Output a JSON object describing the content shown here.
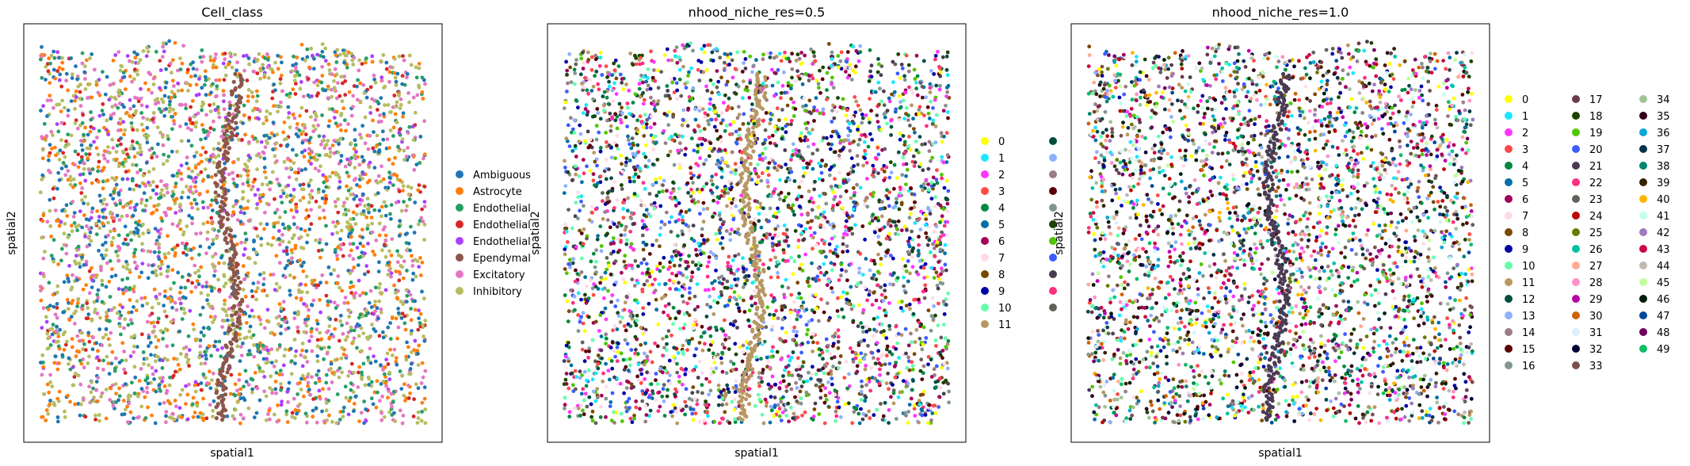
{
  "chart_data": [
    {
      "type": "scatter",
      "title": "Cell_class",
      "xlabel": "spatial1",
      "ylabel": "spatial2",
      "ticks": "none",
      "legend": {
        "placement": "right",
        "columns": 1,
        "entries": [
          {
            "label": "Ambiguous",
            "color": "#1f77b4"
          },
          {
            "label": "Astrocyte",
            "color": "#ff7f0e"
          },
          {
            "label": "Endothelial",
            "color": "#279e68"
          },
          {
            "label": "Endothelial",
            "color": "#d62728"
          },
          {
            "label": "Endothelial",
            "color": "#aa40fc"
          },
          {
            "label": "Ependymal",
            "color": "#8c564b"
          },
          {
            "label": "Excitatory",
            "color": "#e377c2"
          },
          {
            "label": "Inhibitory",
            "color": "#b5bd61"
          }
        ]
      }
    },
    {
      "type": "scatter",
      "title": "nhood_niche_res=0.5",
      "xlabel": "spatial1",
      "ylabel": "spatial2",
      "ticks": "none",
      "legend": {
        "placement": "right",
        "columns": 2,
        "entries": [
          {
            "label": "0",
            "color": "#ffff00"
          },
          {
            "label": "1",
            "color": "#1ce6ff"
          },
          {
            "label": "2",
            "color": "#ff34ff"
          },
          {
            "label": "3",
            "color": "#ff4a46"
          },
          {
            "label": "4",
            "color": "#008941"
          },
          {
            "label": "5",
            "color": "#006fa6"
          },
          {
            "label": "6",
            "color": "#a30059"
          },
          {
            "label": "7",
            "color": "#ffdbe5"
          },
          {
            "label": "8",
            "color": "#7a4900"
          },
          {
            "label": "9",
            "color": "#0000a6"
          },
          {
            "label": "10",
            "color": "#63ffac"
          },
          {
            "label": "11",
            "color": "#b79762"
          },
          {
            "label": "",
            "color": "#004d43"
          },
          {
            "label": "",
            "color": "#8fb0ff"
          },
          {
            "label": "",
            "color": "#997d87"
          },
          {
            "label": "",
            "color": "#5a0007"
          },
          {
            "label": "",
            "color": "#809693"
          },
          {
            "label": "",
            "color": "#1b4400"
          },
          {
            "label": "",
            "color": "#4fc601"
          },
          {
            "label": "",
            "color": "#3b5dff"
          },
          {
            "label": "",
            "color": "#4a3b53"
          },
          {
            "label": "",
            "color": "#ff2f80"
          },
          {
            "label": "",
            "color": "#61615a"
          }
        ]
      }
    },
    {
      "type": "scatter",
      "title": "nhood_niche_res=1.0",
      "xlabel": "spatial1",
      "ylabel": "spatial2",
      "ticks": "none",
      "legend": {
        "placement": "right",
        "columns": 3,
        "entries": [
          {
            "label": "0",
            "color": "#ffff00"
          },
          {
            "label": "1",
            "color": "#1ce6ff"
          },
          {
            "label": "2",
            "color": "#ff34ff"
          },
          {
            "label": "3",
            "color": "#ff4a46"
          },
          {
            "label": "4",
            "color": "#008941"
          },
          {
            "label": "5",
            "color": "#006fa6"
          },
          {
            "label": "6",
            "color": "#a30059"
          },
          {
            "label": "7",
            "color": "#ffdbe5"
          },
          {
            "label": "8",
            "color": "#7a4900"
          },
          {
            "label": "9",
            "color": "#0000a6"
          },
          {
            "label": "10",
            "color": "#63ffac"
          },
          {
            "label": "11",
            "color": "#b79762"
          },
          {
            "label": "12",
            "color": "#004d43"
          },
          {
            "label": "13",
            "color": "#8fb0ff"
          },
          {
            "label": "14",
            "color": "#997d87"
          },
          {
            "label": "15",
            "color": "#5a0007"
          },
          {
            "label": "16",
            "color": "#809693"
          },
          {
            "label": "17",
            "color": "#6a3a4c"
          },
          {
            "label": "18",
            "color": "#1b4400"
          },
          {
            "label": "19",
            "color": "#4fc601"
          },
          {
            "label": "20",
            "color": "#3b5dff"
          },
          {
            "label": "21",
            "color": "#4a3b53"
          },
          {
            "label": "22",
            "color": "#ff2f80"
          },
          {
            "label": "23",
            "color": "#61615a"
          },
          {
            "label": "24",
            "color": "#ba0900"
          },
          {
            "label": "25",
            "color": "#6b7900"
          },
          {
            "label": "26",
            "color": "#00c2a0"
          },
          {
            "label": "27",
            "color": "#ffaa92"
          },
          {
            "label": "28",
            "color": "#ff90c9"
          },
          {
            "label": "29",
            "color": "#b903aa"
          },
          {
            "label": "30",
            "color": "#d16100"
          },
          {
            "label": "31",
            "color": "#ddefff"
          },
          {
            "label": "32",
            "color": "#000035"
          },
          {
            "label": "33",
            "color": "#7b4f4b"
          },
          {
            "label": "34",
            "color": "#a1c299"
          },
          {
            "label": "35",
            "color": "#300018"
          },
          {
            "label": "36",
            "color": "#0aa6d8"
          },
          {
            "label": "37",
            "color": "#013349"
          },
          {
            "label": "38",
            "color": "#00846f"
          },
          {
            "label": "39",
            "color": "#372101"
          },
          {
            "label": "40",
            "color": "#ffb500"
          },
          {
            "label": "41",
            "color": "#c2ffed"
          },
          {
            "label": "42",
            "color": "#a079bf"
          },
          {
            "label": "43",
            "color": "#cc0744"
          },
          {
            "label": "44",
            "color": "#c0b9b2"
          },
          {
            "label": "45",
            "color": "#c2ff99"
          },
          {
            "label": "46",
            "color": "#001e09"
          },
          {
            "label": "47",
            "color": "#00489c"
          },
          {
            "label": "48",
            "color": "#6f0062"
          },
          {
            "label": "49",
            "color": "#0cbd66"
          }
        ]
      }
    }
  ]
}
